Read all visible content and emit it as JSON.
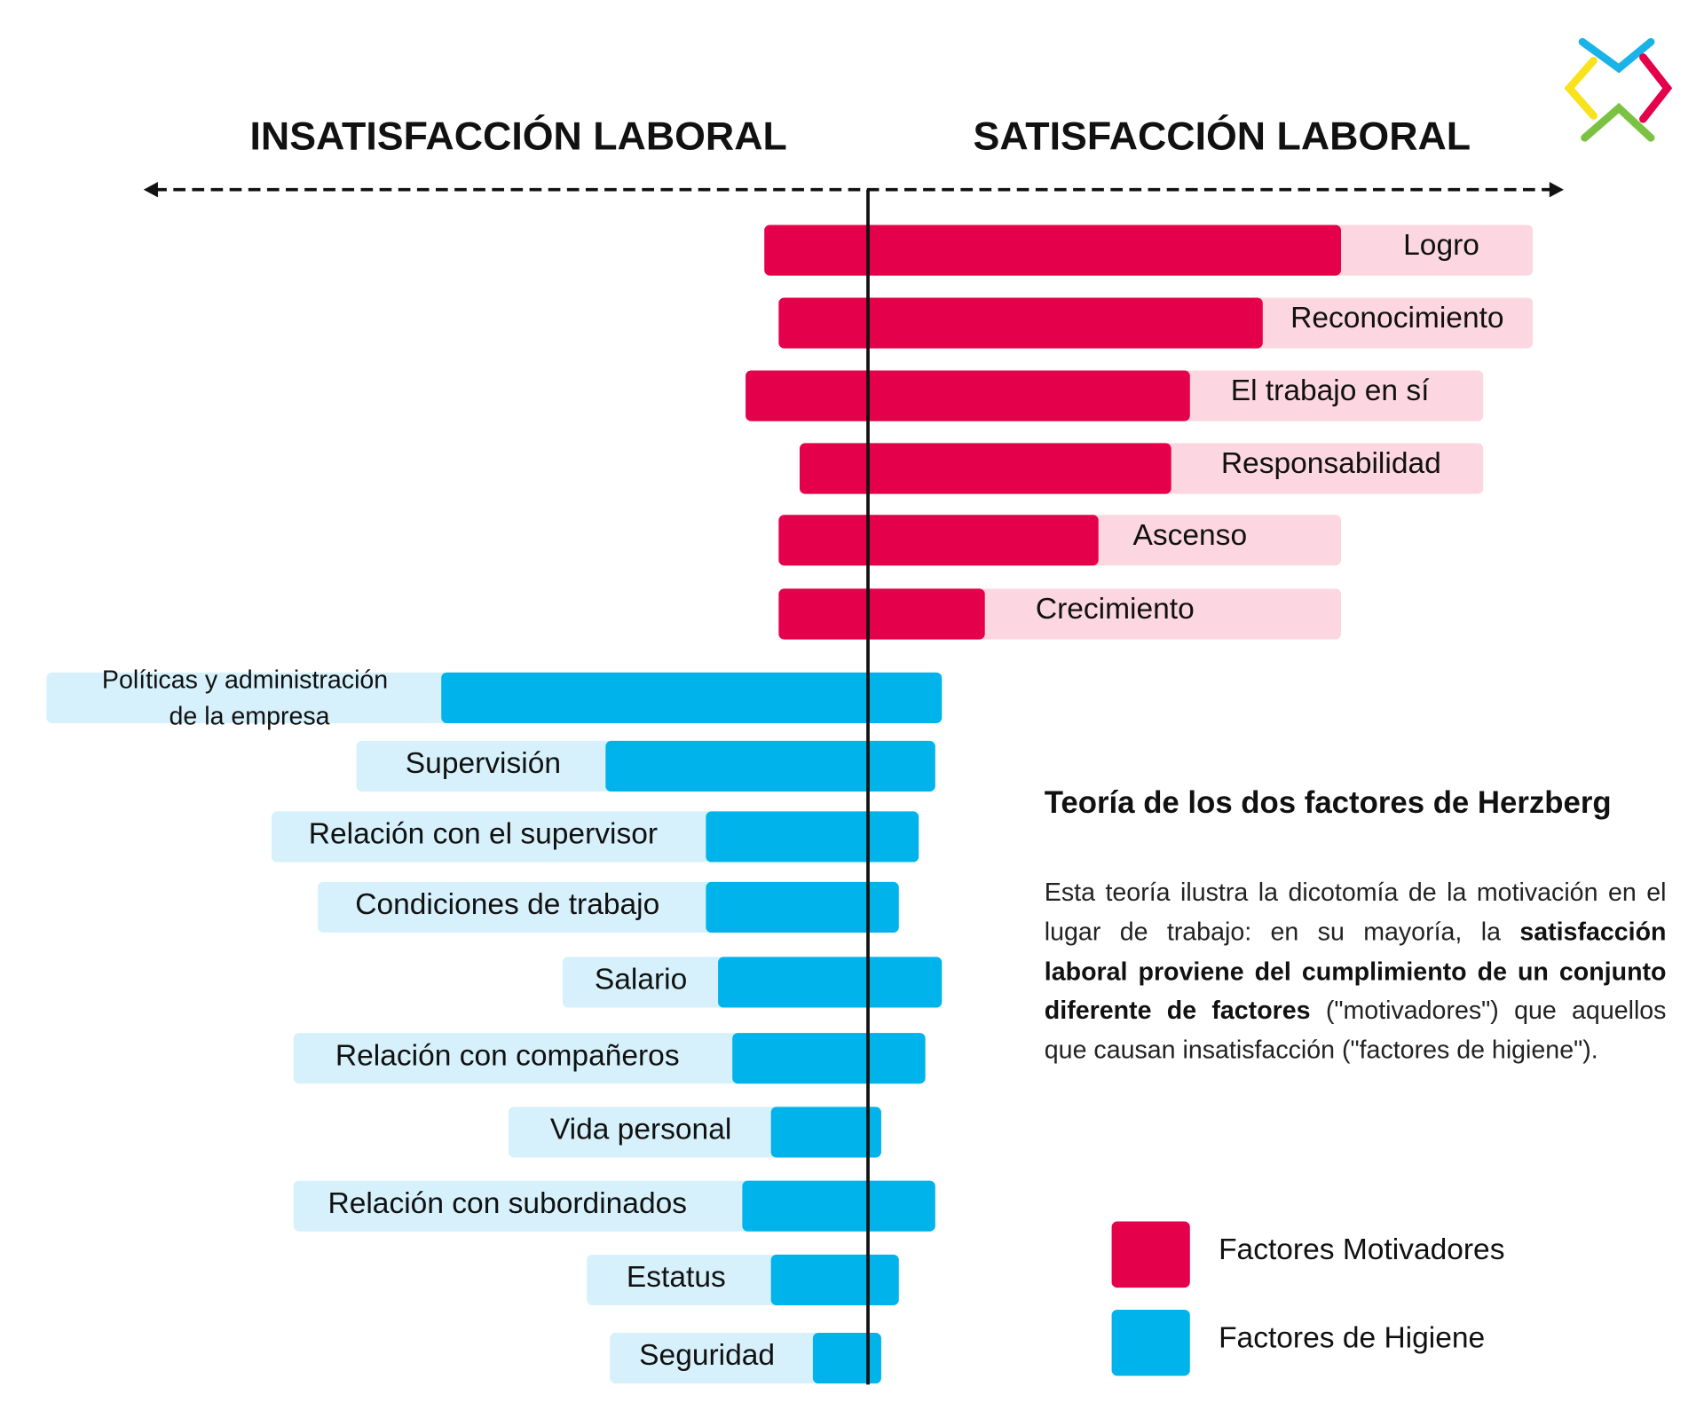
{
  "header": {
    "left_title": "INSATISFACCIÓN LABORAL",
    "right_title": "SATISFACCIÓN LABORAL"
  },
  "motivators": [
    {
      "label": "Logro"
    },
    {
      "label": "Reconocimiento"
    },
    {
      "label": "El trabajo en sí"
    },
    {
      "label": "Responsabilidad"
    },
    {
      "label": "Ascenso"
    },
    {
      "label": "Crecimiento"
    }
  ],
  "hygiene": [
    {
      "label": [
        "Políticas y administración",
        "de la empresa"
      ]
    },
    {
      "label": "Supervisión"
    },
    {
      "label": "Relación con el supervisor"
    },
    {
      "label": "Condiciones de trabajo"
    },
    {
      "label": "Salario"
    },
    {
      "label": "Relación con compañeros"
    },
    {
      "label": "Vida personal"
    },
    {
      "label": "Relación con subordinados"
    },
    {
      "label": "Estatus"
    },
    {
      "label": "Seguridad"
    }
  ],
  "info": {
    "title": "Teoría de los dos factores de Herzberg",
    "paragraph": [
      "Esta teoría ilustra la dicotomía de la motivación en el lugar de trabajo: en su mayoría, la ",
      "satisfacción laboral proviene del cumplimiento de un conjunto diferente de factores",
      " (\"motivadores\") que aquellos que causan insatisfacción (\"factores de higiene\")."
    ]
  },
  "legend": [
    {
      "label": "Factores Motivadores",
      "color": "#e4004b"
    },
    {
      "label": "Factores de Higiene",
      "color": "#00b3eb"
    }
  ]
}
